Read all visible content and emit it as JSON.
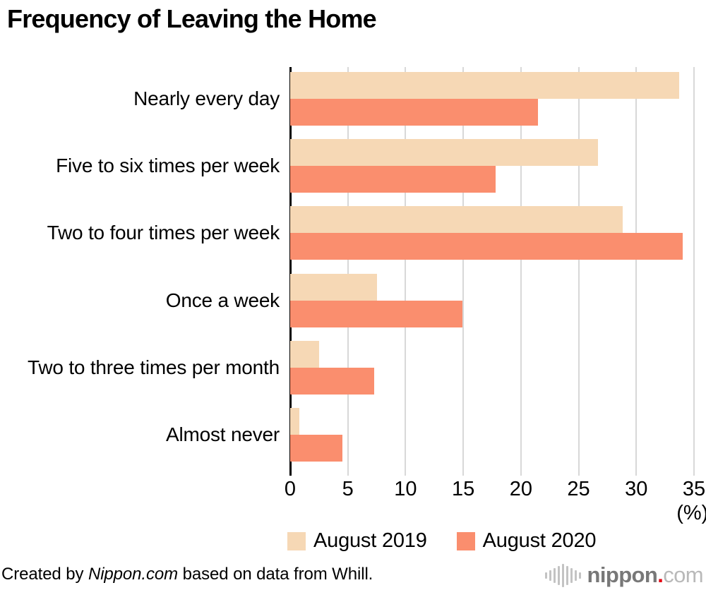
{
  "title": "Frequency of Leaving the Home",
  "chart_data": {
    "type": "bar",
    "orientation": "horizontal",
    "title": "Frequency of Leaving the Home",
    "categories": [
      "Nearly every day",
      "Five to six times per week",
      "Two to four times per week",
      "Once a week",
      "Two to three times per month",
      "Almost never"
    ],
    "series": [
      {
        "name": "August 2019",
        "color": "#f6d8b5",
        "values": [
          33.7,
          26.7,
          28.8,
          7.5,
          2.5,
          0.8
        ]
      },
      {
        "name": "August 2020",
        "color": "#fa8e6e",
        "values": [
          21.5,
          17.8,
          34.0,
          14.9,
          7.3,
          4.5
        ]
      }
    ],
    "xlim": [
      0,
      35
    ],
    "x_ticks": [
      0,
      5,
      10,
      15,
      20,
      25,
      30,
      35
    ],
    "x_unit_label": "(%)",
    "grid": true,
    "gridline_color": "#d8d8d8",
    "legend_position": "bottom"
  },
  "footer": {
    "credit_prefix": "Created by ",
    "credit_source": "Nippon.com",
    "credit_suffix": " based on data from Whill.",
    "logo": {
      "icon": "soundwave-icon",
      "name": "nippon",
      "dot": ".",
      "tld": "com",
      "dot_color": "#e60012"
    }
  }
}
